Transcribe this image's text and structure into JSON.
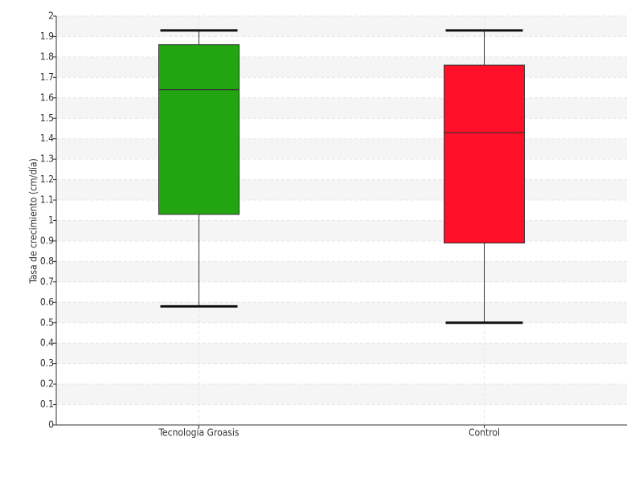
{
  "chart_data": {
    "type": "box",
    "y_label": "Tasa de crecimiento (cm/día)",
    "categories": [
      "Tecnología Groasis",
      "Control"
    ],
    "boxes": [
      {
        "color": "#22a511",
        "min": 0.58,
        "q1": 1.03,
        "median": 1.64,
        "q3": 1.86,
        "max": 1.93
      },
      {
        "color": "#ff0f28",
        "min": 0.5,
        "q1": 0.89,
        "median": 1.43,
        "q3": 1.76,
        "max": 1.93
      }
    ],
    "ylim": [
      0,
      2
    ],
    "yticks": [
      0,
      0.1,
      0.2,
      0.3,
      0.4,
      0.5,
      0.6,
      0.7,
      0.8,
      0.9,
      1,
      1.1,
      1.2,
      1.3,
      1.4,
      1.5,
      1.6,
      1.7,
      1.8,
      1.9,
      2
    ],
    "grid": true
  }
}
